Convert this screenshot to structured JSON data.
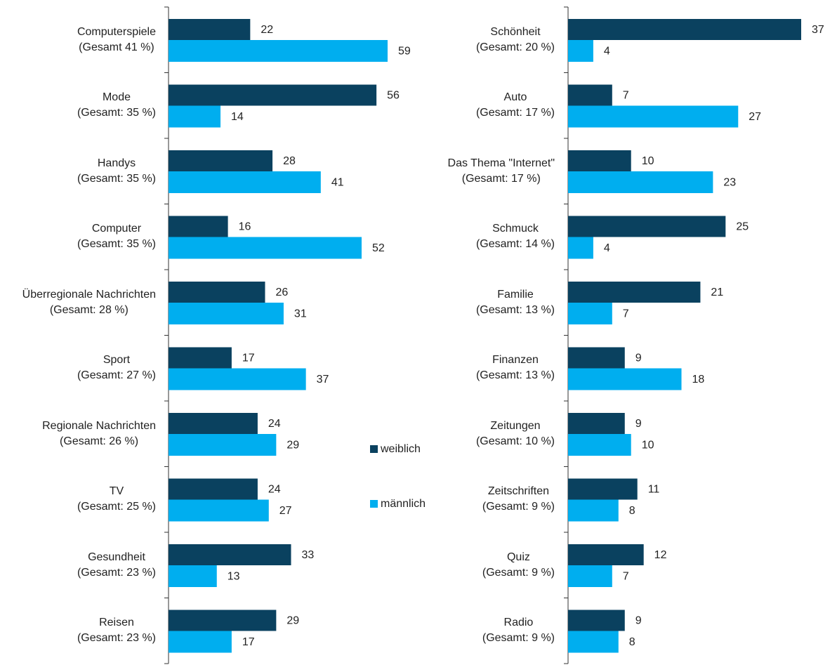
{
  "chart_data": [
    {
      "type": "bar",
      "categories": [
        "Computerspiele\n(Gesamt 41 %)",
        "Mode\n(Gesamt: 35 %)",
        "Handys\n(Gesamt: 35 %)",
        "Computer\n(Gesamt: 35 %)",
        "Überregionale Nachrichten\n(Gesamt: 28 %)",
        "Sport\n(Gesamt: 27 %)",
        "Regionale Nachrichten\n(Gesamt: 26 %)",
        "TV\n(Gesamt: 25 %)",
        "Gesundheit\n(Gesamt: 23 %)",
        "Reisen\n(Gesamt: 23 %)"
      ],
      "series": [
        {
          "name": "weiblich",
          "color": "#0a415f",
          "values": [
            22,
            56,
            28,
            16,
            26,
            17,
            24,
            24,
            33,
            29
          ]
        },
        {
          "name": "männlich",
          "color": "#00aeef",
          "values": [
            59,
            14,
            41,
            52,
            31,
            37,
            29,
            27,
            13,
            17
          ]
        }
      ],
      "xlim": [
        0,
        59
      ]
    },
    {
      "type": "bar",
      "categories": [
        "Schönheit\n(Gesamt: 20 %)",
        "Auto\n(Gesamt: 17 %)",
        "Das Thema \"Internet\"\n(Gesamt: 17 %)",
        "Schmuck\n(Gesamt: 14 %)",
        "Familie\n(Gesamt: 13 %)",
        "Finanzen\n(Gesamt: 13 %)",
        "Zeitungen\n(Gesamt: 10 %)",
        "Zeitschriften\n(Gesamt: 9 %)",
        "Quiz\n(Gesamt: 9 %)",
        "Radio\n(Gesamt: 9 %)"
      ],
      "series": [
        {
          "color": "#0a415f",
          "values": [
            37,
            7,
            10,
            25,
            21,
            9,
            9,
            11,
            12,
            9
          ]
        },
        {
          "color": "#00aeef",
          "values": [
            4,
            27,
            23,
            4,
            7,
            18,
            10,
            8,
            7,
            8
          ]
        }
      ],
      "xlim": [
        0,
        37
      ]
    }
  ]
}
